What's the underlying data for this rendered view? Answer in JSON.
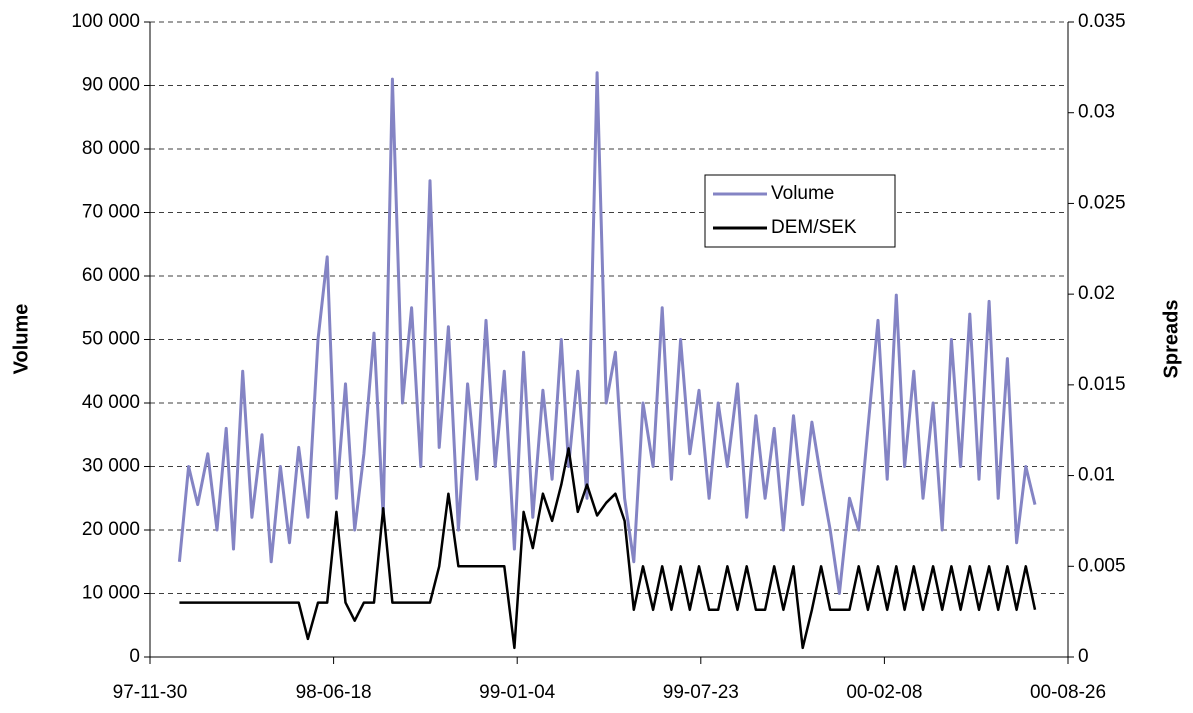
{
  "chart_data": {
    "type": "line",
    "x": [
      "98-01-01",
      "98-01-11",
      "98-01-21",
      "98-02-01",
      "98-02-11",
      "98-02-21",
      "98-03-01",
      "98-03-11",
      "98-03-21",
      "98-04-01",
      "98-04-11",
      "98-04-21",
      "98-05-01",
      "98-05-11",
      "98-05-21",
      "98-06-01",
      "98-06-11",
      "98-06-21",
      "98-07-01",
      "98-07-11",
      "98-07-21",
      "98-08-01",
      "98-08-11",
      "98-08-21",
      "98-09-01",
      "98-09-11",
      "98-09-21",
      "98-10-01",
      "98-10-11",
      "98-10-21",
      "98-11-01",
      "98-11-11",
      "98-11-21",
      "98-12-01",
      "98-12-11",
      "98-12-21",
      "99-01-01",
      "99-01-11",
      "99-01-21",
      "99-02-01",
      "99-02-11",
      "99-02-21",
      "99-03-01",
      "99-03-11",
      "99-03-21",
      "99-04-01",
      "99-04-11",
      "99-04-21",
      "99-05-01",
      "99-05-11",
      "99-05-21",
      "99-06-01",
      "99-06-11",
      "99-06-21",
      "99-07-01",
      "99-07-11",
      "99-07-21",
      "99-08-01",
      "99-08-11",
      "99-08-21",
      "99-09-01",
      "99-09-11",
      "99-09-21",
      "99-10-01",
      "99-10-11",
      "99-10-21",
      "99-11-01",
      "99-11-11",
      "99-11-21",
      "99-12-01",
      "99-12-11",
      "99-12-21",
      "00-01-01",
      "00-01-11",
      "00-01-21",
      "00-02-01",
      "00-02-11",
      "00-02-21",
      "00-03-01",
      "00-03-11",
      "00-03-21",
      "00-04-01",
      "00-04-11",
      "00-04-21",
      "00-05-01",
      "00-05-11",
      "00-05-21",
      "00-06-01",
      "00-06-11",
      "00-06-21",
      "00-07-01",
      "00-07-11",
      "00-07-21"
    ],
    "series": [
      {
        "name": "Volume",
        "color": "#8484c4",
        "axis": "y",
        "values": [
          15000,
          30000,
          24000,
          32000,
          20000,
          36000,
          17000,
          45000,
          22000,
          35000,
          15000,
          30000,
          18000,
          33000,
          22000,
          50000,
          63000,
          25000,
          43000,
          20000,
          32000,
          51000,
          22000,
          91000,
          40000,
          55000,
          30000,
          75000,
          33000,
          52000,
          20000,
          43000,
          28000,
          53000,
          30000,
          45000,
          17000,
          48000,
          22000,
          42000,
          28000,
          50000,
          30000,
          45000,
          25000,
          92000,
          40000,
          48000,
          25000,
          15000,
          40000,
          30000,
          55000,
          28000,
          50000,
          32000,
          42000,
          25000,
          40000,
          30000,
          43000,
          22000,
          38000,
          25000,
          36000,
          20000,
          38000,
          24000,
          37000,
          28000,
          20000,
          10000,
          25000,
          20000,
          36000,
          53000,
          28000,
          57000,
          30000,
          45000,
          25000,
          40000,
          20000,
          50000,
          30000,
          54000,
          28000,
          56000,
          25000,
          47000,
          18000,
          30000,
          24000
        ]
      },
      {
        "name": "DEM/SEK",
        "color": "#000000",
        "axis": "y2",
        "values": [
          0.003,
          0.003,
          0.003,
          0.003,
          0.003,
          0.003,
          0.003,
          0.003,
          0.003,
          0.003,
          0.003,
          0.003,
          0.003,
          0.003,
          0.001,
          0.003,
          0.003,
          0.008,
          0.003,
          0.002,
          0.003,
          0.003,
          0.0082,
          0.003,
          0.003,
          0.003,
          0.003,
          0.003,
          0.005,
          0.009,
          0.005,
          0.005,
          0.005,
          0.005,
          0.005,
          0.005,
          0.0005,
          0.008,
          0.006,
          0.009,
          0.0075,
          0.0095,
          0.0115,
          0.008,
          0.0095,
          0.0078,
          0.0085,
          0.009,
          0.0075,
          0.0026,
          0.005,
          0.0026,
          0.005,
          0.0026,
          0.005,
          0.0026,
          0.005,
          0.0026,
          0.0026,
          0.005,
          0.0026,
          0.005,
          0.0026,
          0.0026,
          0.005,
          0.0026,
          0.005,
          0.0005,
          0.0026,
          0.005,
          0.0026,
          0.0026,
          0.0026,
          0.005,
          0.0026,
          0.005,
          0.0026,
          0.005,
          0.0026,
          0.005,
          0.0026,
          0.005,
          0.0026,
          0.005,
          0.0026,
          0.005,
          0.0026,
          0.005,
          0.0026,
          0.005,
          0.0026,
          0.005,
          0.0026
        ]
      }
    ],
    "ylabel": "Volume",
    "y2label": "Spreads",
    "xlim": [
      "97-11-30",
      "00-08-26"
    ],
    "xticks": [
      "97-11-30",
      "98-06-18",
      "99-01-04",
      "99-07-23",
      "00-02-08",
      "00-08-26"
    ],
    "ylim": [
      0,
      100000
    ],
    "yticks": [
      0,
      {
        "value": 10000,
        "label": "10 000"
      },
      {
        "value": 20000,
        "label": "20 000"
      },
      {
        "value": 30000,
        "label": "30 000"
      },
      {
        "value": 40000,
        "label": "40 000"
      },
      {
        "value": 50000,
        "label": "50 000"
      },
      {
        "value": 60000,
        "label": "60 000"
      },
      {
        "value": 70000,
        "label": "70 000"
      },
      {
        "value": 80000,
        "label": "80 000"
      },
      {
        "value": 90000,
        "label": "90 000"
      },
      {
        "value": 100000,
        "label": "100 000"
      }
    ],
    "y2lim": [
      0,
      0.035
    ],
    "y2ticks": [
      0,
      0.005,
      0.01,
      0.015,
      0.02,
      0.025,
      0.03,
      0.035
    ],
    "grid": true,
    "legend": "upper right"
  }
}
